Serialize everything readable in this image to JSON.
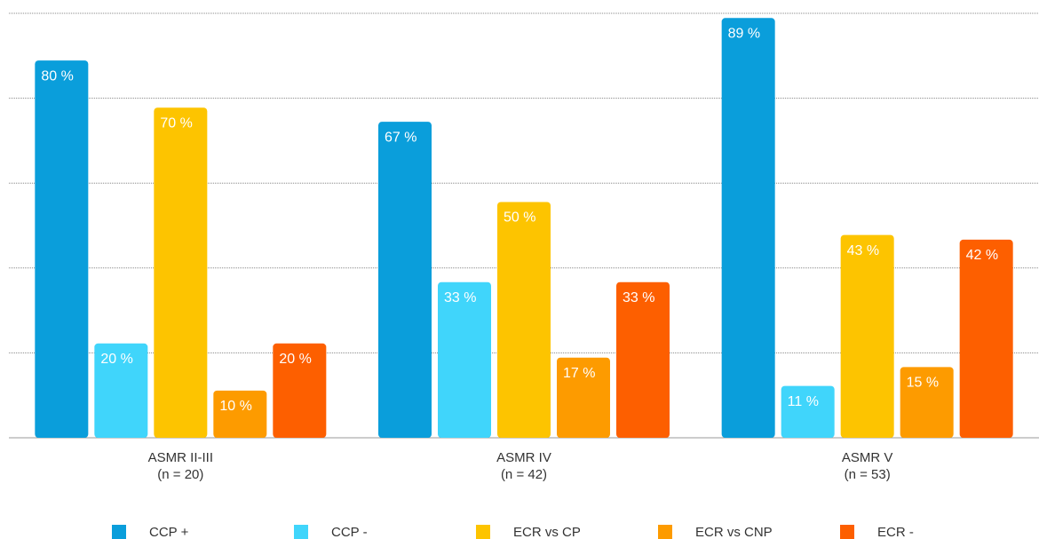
{
  "chart_data": {
    "type": "bar",
    "categories": [
      [
        "ASMR II-III",
        "(n = 20)"
      ],
      [
        "ASMR IV",
        "(n = 42)"
      ],
      [
        "ASMR V",
        "(n = 53)"
      ]
    ],
    "series": [
      {
        "name": "CCP +",
        "color": "#0a9edb",
        "values": [
          80,
          67,
          89
        ],
        "value_labels": [
          "80 %",
          "67 %",
          "89 %"
        ]
      },
      {
        "name": "CCP -",
        "color": "#40d5fb",
        "values": [
          20,
          33,
          11
        ],
        "value_labels": [
          "20 %",
          "33 %",
          "11 %"
        ]
      },
      {
        "name": "ECR vs CP",
        "color": "#fdc400",
        "values": [
          70,
          50,
          43
        ],
        "value_labels": [
          "70 %",
          "50 %",
          "43 %"
        ]
      },
      {
        "name": "ECR vs CNP",
        "color": "#fd9b00",
        "values": [
          10,
          17,
          15
        ],
        "value_labels": [
          "10 %",
          "17 %",
          "15 %"
        ]
      },
      {
        "name": "ECR -",
        "color": "#fd5f00",
        "values": [
          20,
          33,
          42
        ],
        "value_labels": [
          "20 %",
          "33 %",
          "42 %"
        ]
      }
    ],
    "ylim": [
      0,
      90
    ],
    "yticks": [
      0,
      18,
      36,
      54,
      72,
      90
    ],
    "grid": true
  }
}
